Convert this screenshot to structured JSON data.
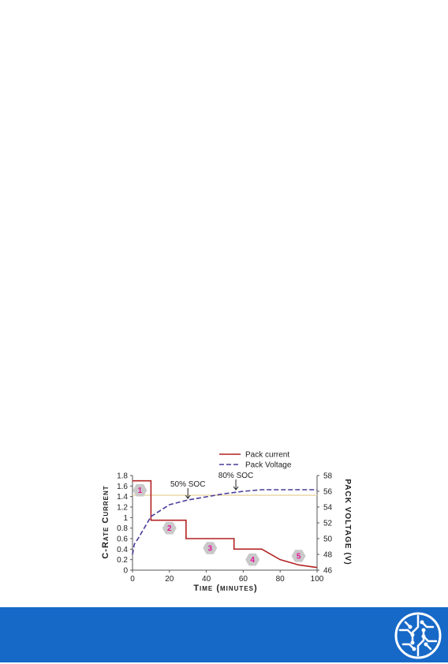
{
  "chart_data": {
    "type": "line",
    "xlabel": "Time (minutes)",
    "ylabel": "C-Rate Current",
    "y2label": "Pack Voltage (V)",
    "xlim": [
      0,
      100
    ],
    "ylim": [
      0,
      1.8
    ],
    "y2lim": [
      46,
      58
    ],
    "x_ticks": [
      "0",
      "20",
      "40",
      "60",
      "80",
      "100"
    ],
    "y_ticks": [
      "0",
      "0.2",
      "0.4",
      "0.6",
      "0.8",
      "1",
      "1.2",
      "1.4",
      "1.6",
      "1.8"
    ],
    "y2_ticks": [
      "46",
      "48",
      "50",
      "52",
      "54",
      "56",
      "58"
    ],
    "grid": false,
    "legend_position": "top-right",
    "series": [
      {
        "name": "Pack current",
        "axis": "left",
        "color": "#b22222",
        "style": "solid",
        "x": [
          0,
          10,
          10,
          29,
          29,
          55,
          55,
          70,
          80,
          90,
          100
        ],
        "y": [
          1.7,
          1.7,
          0.95,
          0.95,
          0.6,
          0.6,
          0.4,
          0.4,
          0.2,
          0.1,
          0.05
        ]
      },
      {
        "name": "Pack Voltage",
        "axis": "right",
        "color": "#4b3a9a",
        "style": "dashed",
        "x": [
          0,
          1,
          3,
          6,
          10,
          20,
          30,
          40,
          50,
          60,
          70,
          80,
          90,
          100
        ],
        "y": [
          48.0,
          49.3,
          50.0,
          51.2,
          52.8,
          54.3,
          54.9,
          55.3,
          55.7,
          56.0,
          56.2,
          56.2,
          56.2,
          56.2
        ]
      }
    ],
    "reference_line": {
      "axis": "right",
      "y": 55.5,
      "color": "#e9d9a8"
    },
    "annotations": [
      {
        "text": "50% SOC",
        "x": 30,
        "y2": 55.0
      },
      {
        "text": "80% SOC",
        "x": 56,
        "y2": 56.1
      }
    ],
    "stage_markers": [
      {
        "label": "1",
        "x": 4,
        "y": 1.52
      },
      {
        "label": "2",
        "x": 20,
        "y": 0.8
      },
      {
        "label": "3",
        "x": 42,
        "y": 0.42
      },
      {
        "label": "4",
        "x": 65,
        "y": 0.2
      },
      {
        "label": "5",
        "x": 90,
        "y": 0.27
      }
    ],
    "marker_text_color": "#e6139a",
    "marker_fill": "#c9c9c9"
  },
  "footer": {
    "color": "#1769c8"
  }
}
